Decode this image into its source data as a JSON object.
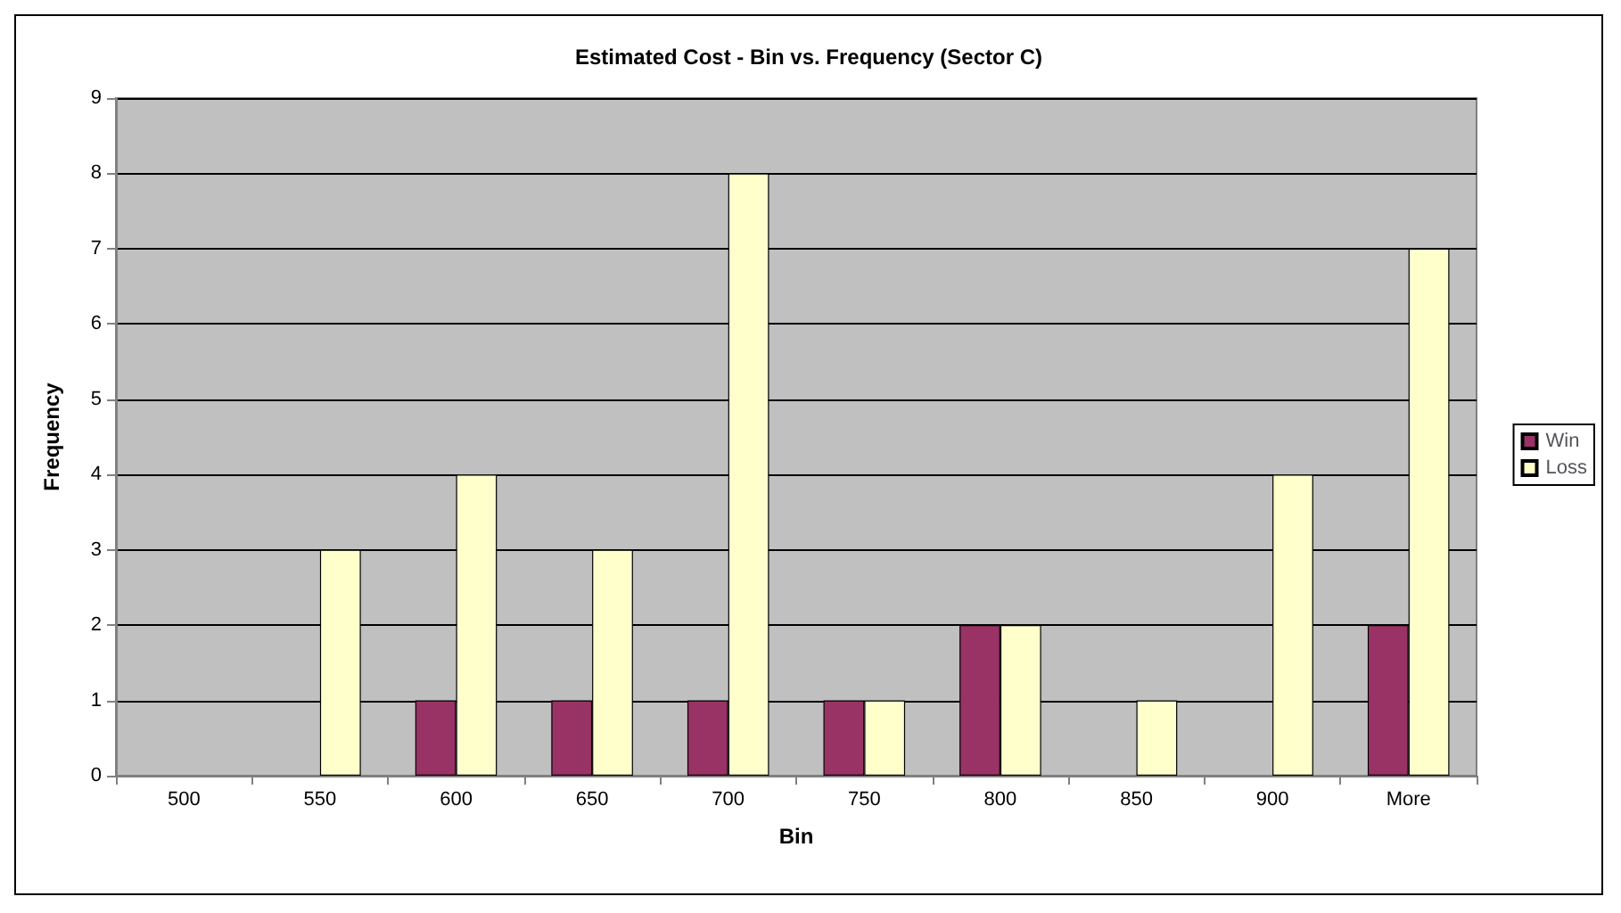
{
  "chart_data": {
    "type": "bar",
    "title": "Estimated Cost - Bin vs. Frequency (Sector C)",
    "xlabel": "Bin",
    "ylabel": "Frequency",
    "categories": [
      "500",
      "550",
      "600",
      "650",
      "700",
      "750",
      "800",
      "850",
      "900",
      "More"
    ],
    "series": [
      {
        "name": "Win",
        "color": "#993366",
        "values": [
          0,
          0,
          1,
          1,
          1,
          1,
          2,
          0,
          0,
          2
        ]
      },
      {
        "name": "Loss",
        "color": "#ffffcc",
        "values": [
          0,
          3,
          4,
          3,
          8,
          1,
          2,
          1,
          4,
          7
        ]
      }
    ],
    "ylim": [
      0,
      9
    ],
    "yticks": [
      0,
      1,
      2,
      3,
      4,
      5,
      6,
      7,
      8,
      9
    ],
    "grid": "y",
    "legend": "right"
  }
}
